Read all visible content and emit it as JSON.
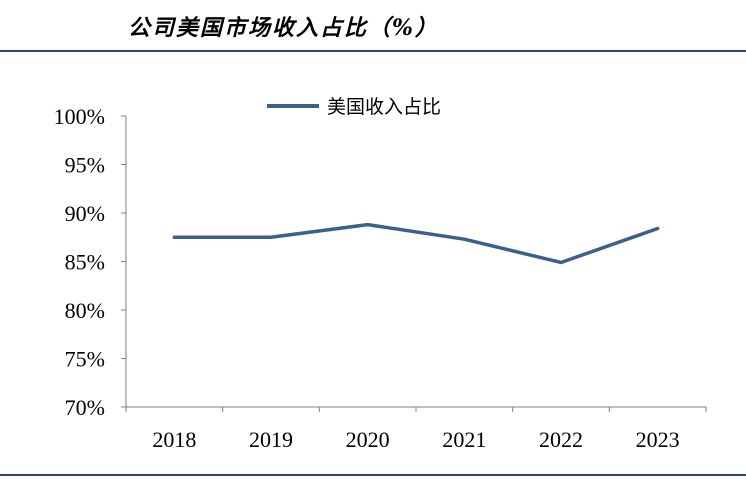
{
  "page": {
    "title": "公司美国市场收入占比（%）"
  },
  "colors": {
    "series": "#3d5f8c",
    "axis": "#7f7f7f",
    "rule": "#2b4466"
  },
  "chart_data": {
    "type": "line",
    "title": "",
    "xlabel": "",
    "ylabel": "",
    "categories": [
      "2018",
      "2019",
      "2020",
      "2021",
      "2022",
      "2023"
    ],
    "yticks": [
      "70%",
      "75%",
      "80%",
      "85%",
      "90%",
      "95%",
      "100%"
    ],
    "ylim": [
      70,
      100
    ],
    "grid": false,
    "legend_position": "top-center",
    "series": [
      {
        "name": "美国收入占比",
        "values": [
          87.5,
          87.5,
          88.8,
          87.3,
          84.9,
          88.4
        ]
      }
    ]
  }
}
